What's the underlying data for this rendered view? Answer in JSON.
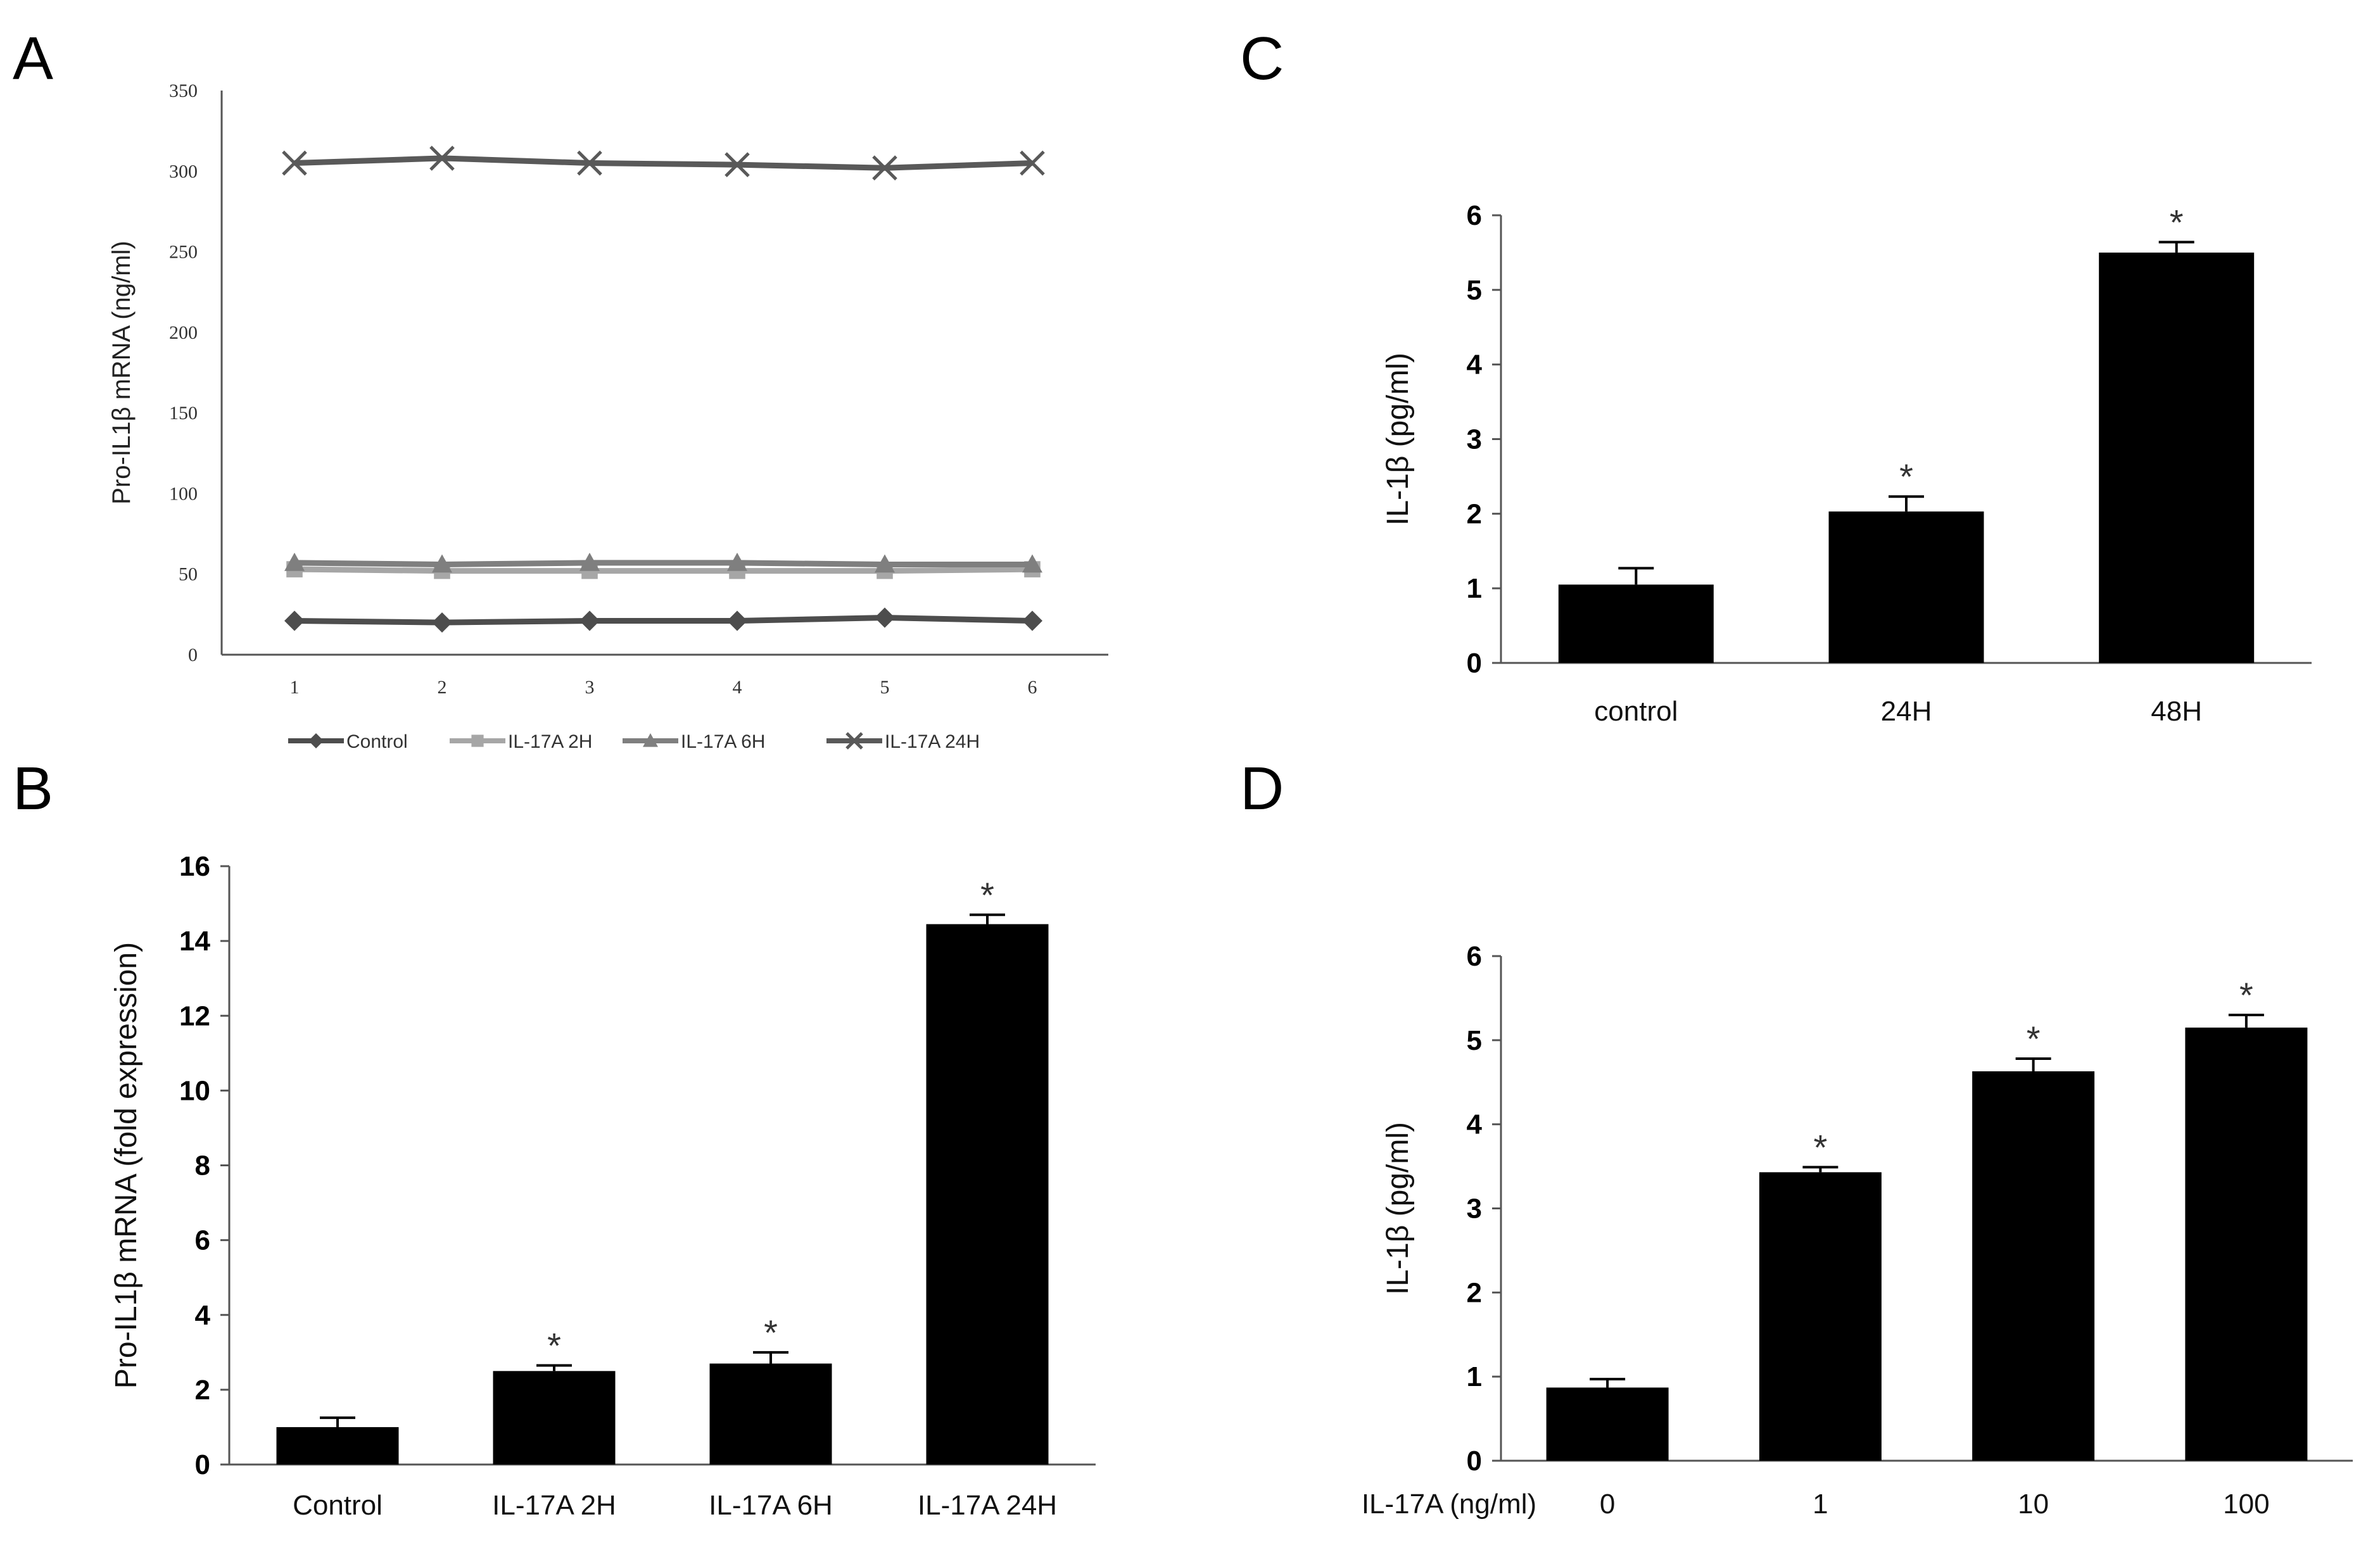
{
  "panels": {
    "a": "A",
    "b": "B",
    "c": "C",
    "d": "D"
  },
  "colors": {
    "bar": "#000000",
    "axis": "#555555",
    "control": "#4d4d4d",
    "il17a_2h": "#a6a6a6",
    "il17a_6h": "#7f7f7f",
    "il17a_24h": "#595959"
  },
  "chart_data": [
    {
      "id": "A",
      "type": "line",
      "title": "",
      "xlabel": "",
      "ylabel": "Pro-IL1β mRNA (ng/ml)",
      "ylim": [
        0,
        350
      ],
      "yticks": [
        0,
        50,
        100,
        150,
        200,
        250,
        300,
        350
      ],
      "x": [
        1,
        2,
        3,
        4,
        5,
        6
      ],
      "series": [
        {
          "name": "Control",
          "marker": "diamond",
          "values": [
            21,
            20,
            21,
            21,
            23,
            21
          ]
        },
        {
          "name": "IL-17A 2H",
          "marker": "square",
          "values": [
            53,
            52,
            52,
            52,
            52,
            53
          ]
        },
        {
          "name": "IL-17A 6H",
          "marker": "triangle",
          "values": [
            57,
            56,
            57,
            57,
            56,
            56
          ]
        },
        {
          "name": "IL-17A 24H",
          "marker": "x",
          "values": [
            305,
            308,
            305,
            304,
            302,
            305
          ]
        }
      ],
      "legend_position": "bottom"
    },
    {
      "id": "B",
      "type": "bar",
      "title": "",
      "xlabel": "",
      "ylabel": "Pro-IL1β mRNA (fold expression)",
      "ylim": [
        0,
        16
      ],
      "yticks": [
        0,
        2,
        4,
        6,
        8,
        10,
        12,
        14,
        16
      ],
      "categories": [
        "Control",
        "IL-17A 2H",
        "IL-17A 6H",
        "IL-17A 24H"
      ],
      "values": [
        1.0,
        2.5,
        2.7,
        14.45
      ],
      "errors": [
        0.25,
        0.15,
        0.3,
        0.25
      ],
      "significance": [
        "",
        "*",
        "*",
        "*"
      ]
    },
    {
      "id": "C",
      "type": "bar",
      "title": "",
      "xlabel": "",
      "ylabel": "IL-1β (pg/ml)",
      "ylim": [
        0,
        6
      ],
      "yticks": [
        0,
        1,
        2,
        3,
        4,
        5,
        6
      ],
      "categories": [
        "control",
        "24H",
        "48H"
      ],
      "values": [
        1.05,
        2.03,
        5.5
      ],
      "errors": [
        0.22,
        0.2,
        0.14
      ],
      "significance": [
        "",
        "*",
        "*"
      ]
    },
    {
      "id": "D",
      "type": "bar",
      "title": "",
      "xlabel": "IL-17A (ng/ml)",
      "ylabel": "IL-1β (pg/ml)",
      "ylim": [
        0,
        6
      ],
      "yticks": [
        0,
        1,
        2,
        3,
        4,
        5,
        6
      ],
      "categories": [
        "0",
        "1",
        "10",
        "100"
      ],
      "values": [
        0.87,
        3.43,
        4.63,
        5.15
      ],
      "errors": [
        0.1,
        0.06,
        0.15,
        0.15
      ],
      "significance": [
        "",
        "*",
        "*",
        "*"
      ]
    }
  ]
}
